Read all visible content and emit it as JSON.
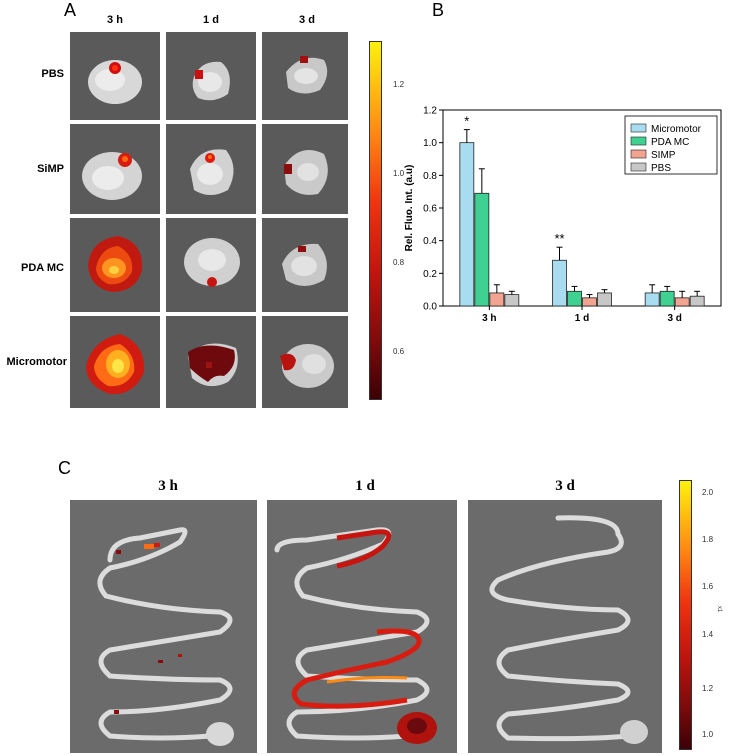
{
  "panel_a": {
    "letter": "A",
    "columns": [
      "3 h",
      "1 d",
      "3 d"
    ],
    "rows": [
      "PBS",
      "SiMP",
      "PDA MC",
      "Micromotor"
    ],
    "colorbar": {
      "ticks": [
        "1.2",
        "1.0",
        "0.8",
        "0.6"
      ],
      "unit": "x1"
    }
  },
  "panel_b": {
    "letter": "B"
  },
  "panel_c": {
    "letter": "C",
    "columns": [
      "3 h",
      "1 d",
      "3 d"
    ],
    "colorbar": {
      "ticks": [
        "2.0",
        "1.8",
        "1.6",
        "1.4",
        "1.2",
        "1.0"
      ],
      "unit": "x1"
    }
  },
  "chart_data": {
    "type": "bar",
    "ylabel": "Rel. Fluo. Int. (a.u)",
    "xlabel": "",
    "ylim": [
      0,
      1.2
    ],
    "yticks": [
      "0.0",
      "0.2",
      "0.4",
      "0.6",
      "0.8",
      "1.0",
      "1.2"
    ],
    "categories": [
      "3 h",
      "1 d",
      "3 d"
    ],
    "series": [
      {
        "name": "Micromotor",
        "color": "#a8dcf0",
        "values": [
          1.0,
          0.28,
          0.08
        ],
        "errors": [
          0.08,
          0.08,
          0.05
        ]
      },
      {
        "name": "PDA MC",
        "color": "#3fd191",
        "values": [
          0.69,
          0.09,
          0.09
        ],
        "errors": [
          0.15,
          0.03,
          0.03
        ]
      },
      {
        "name": "SIMP",
        "color": "#f2a491",
        "values": [
          0.08,
          0.05,
          0.05
        ],
        "errors": [
          0.05,
          0.02,
          0.04
        ]
      },
      {
        "name": "PBS",
        "color": "#c7c7c7",
        "values": [
          0.07,
          0.08,
          0.06
        ],
        "errors": [
          0.02,
          0.02,
          0.03
        ]
      }
    ],
    "annotations": [
      {
        "category": "3 h",
        "text": "*"
      },
      {
        "category": "1 d",
        "text": "**"
      }
    ],
    "legend": "top-right"
  }
}
